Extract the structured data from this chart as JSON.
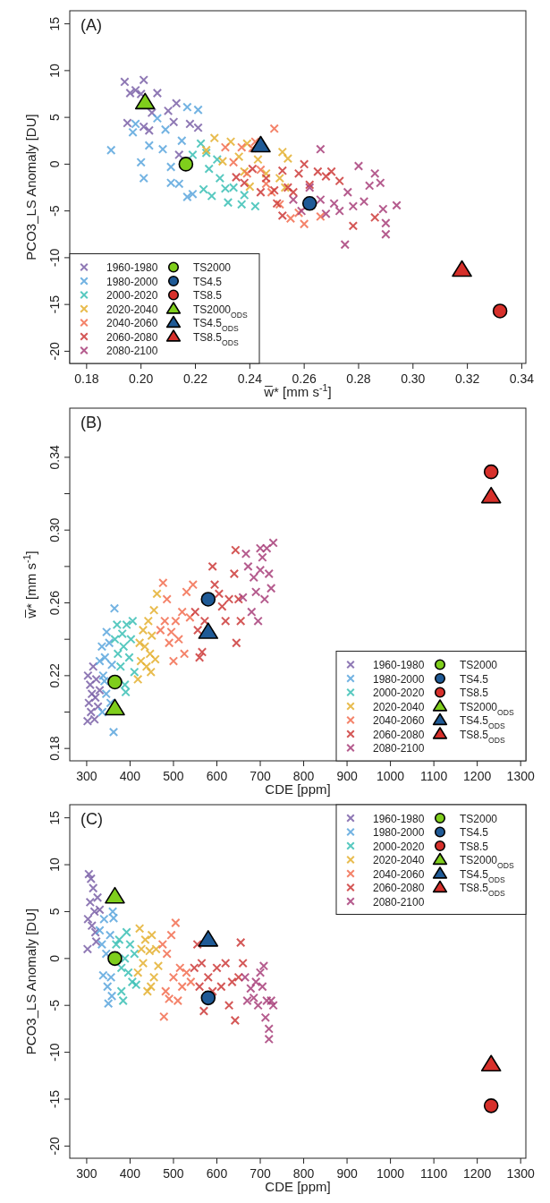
{
  "chart_data": [
    {
      "type": "scatter",
      "xlabel": "w̅* [mm s$^{-1}$]",
      "ylabel": "PCO3_LS Anomaly [DU]",
      "annotations": [
        "(A)"
      ],
      "xlim": [
        0.1738,
        0.3415
      ],
      "xticks": [
        0.18,
        {
          "value": 0.2,
          "label": "0.20"
        },
        0.22,
        0.24,
        0.26,
        0.28,
        {
          "value": 0.3,
          "label": "0.30"
        },
        0.32,
        0.34
      ],
      "ylim": [
        -21.3,
        16.4
      ],
      "yticks": [
        -20,
        -15,
        -10,
        -5,
        0,
        5,
        10,
        15
      ],
      "legend": "bottom left",
      "grid": false,
      "series": [
        {
          "name": "1960-1980",
          "color": "#7b62a8",
          "marker": "cross",
          "x": [
            0.194,
            0.196,
            0.198,
            0.201,
            0.2,
            0.204,
            0.206,
            0.201,
            0.195,
            0.203,
            0.21,
            0.213,
            0.212,
            0.218,
            0.221,
            0.214
          ],
          "values": [
            8.8,
            7.6,
            7.9,
            9.0,
            7.5,
            5.5,
            7.6,
            4.0,
            4.4,
            3.6,
            5.7,
            6.5,
            4.5,
            4.3,
            3.9,
            1.0
          ]
        },
        {
          "name": "1980-2000",
          "color": "#5aa6dd",
          "marker": "cross",
          "x": [
            0.189,
            0.198,
            0.197,
            0.2,
            0.201,
            0.203,
            0.206,
            0.209,
            0.211,
            0.211,
            0.214,
            0.217,
            0.221,
            0.219,
            0.217,
            0.208,
            0.215
          ],
          "values": [
            1.5,
            4.3,
            3.4,
            0.2,
            -1.5,
            2.0,
            4.9,
            3.7,
            -0.3,
            -2.0,
            -2.1,
            6.1,
            5.8,
            -3.2,
            -3.5,
            1.6,
            2.5
          ]
        },
        {
          "name": "2000-2020",
          "color": "#3bbfb5",
          "marker": "cross",
          "x": [
            0.219,
            0.222,
            0.225,
            0.223,
            0.226,
            0.229,
            0.231,
            0.232,
            0.234,
            0.237,
            0.238,
            0.242,
            0.228,
            0.224
          ],
          "values": [
            1.0,
            2.2,
            -0.5,
            -2.7,
            -3.4,
            -1.5,
            -2.6,
            -4.1,
            -2.5,
            -4.3,
            -3.3,
            -4.5,
            0.5,
            1.2
          ]
        },
        {
          "name": "2020-2040",
          "color": "#e4b030",
          "marker": "cross",
          "x": [
            0.224,
            0.227,
            0.23,
            0.233,
            0.236,
            0.238,
            0.24,
            0.243,
            0.246,
            0.251,
            0.252,
            0.254,
            0.253,
            0.239
          ],
          "values": [
            1.5,
            2.8,
            0.3,
            2.4,
            0.8,
            -0.8,
            -2.4,
            0.5,
            -1.0,
            -1.5,
            1.3,
            0.6,
            -2.5,
            2.2
          ]
        },
        {
          "name": "2040-2060",
          "color": "#f26d50",
          "marker": "cross",
          "x": [
            0.231,
            0.234,
            0.237,
            0.241,
            0.239,
            0.244,
            0.246,
            0.249,
            0.248,
            0.251,
            0.255,
            0.258,
            0.266,
            0.26,
            0.242
          ],
          "values": [
            1.8,
            0.2,
            1.8,
            1.7,
            -1.0,
            -0.6,
            -2.1,
            3.8,
            -3.0,
            -4.3,
            -5.8,
            -5.2,
            -5.6,
            -6.4,
            2.4
          ]
        },
        {
          "name": "2060-2080",
          "color": "#cc3a38",
          "marker": "cross",
          "x": [
            0.235,
            0.238,
            0.241,
            0.244,
            0.246,
            0.249,
            0.25,
            0.252,
            0.254,
            0.256,
            0.258,
            0.26,
            0.262,
            0.265,
            0.268,
            0.27,
            0.273,
            0.252,
            0.278,
            0.286
          ],
          "values": [
            -1.4,
            -2.0,
            -0.5,
            -3.0,
            -1.5,
            -2.8,
            -4.2,
            -0.7,
            -2.5,
            -3.0,
            -1.0,
            0.0,
            -2.2,
            -0.8,
            -1.3,
            -0.8,
            -1.8,
            -5.5,
            -6.6,
            -5.7
          ]
        },
        {
          "name": "2080-2100",
          "color": "#a8407a",
          "marker": "cross",
          "x": [
            0.256,
            0.259,
            0.262,
            0.266,
            0.268,
            0.271,
            0.273,
            0.275,
            0.276,
            0.278,
            0.28,
            0.282,
            0.284,
            0.286,
            0.288,
            0.289,
            0.29,
            0.29,
            0.294,
            0.266
          ],
          "values": [
            -3.8,
            -5.0,
            -2.5,
            -3.8,
            -5.3,
            -4.2,
            -5.0,
            -8.6,
            -3.0,
            -4.5,
            -0.2,
            -4.0,
            -2.3,
            -1.0,
            -2.0,
            -4.8,
            -7.5,
            -6.3,
            -4.4,
            1.6
          ]
        },
        {
          "name": "TS2000",
          "color": "#7fce1c",
          "marker": "circle",
          "x": [
            0.2165
          ],
          "values": [
            0
          ]
        },
        {
          "name": "TS4.5",
          "color": "#1f5a96",
          "marker": "circle",
          "x": [
            0.262
          ],
          "values": [
            -4.2
          ]
        },
        {
          "name": "TS8.5",
          "color": "#d7302b",
          "marker": "circle",
          "x": [
            0.332
          ],
          "values": [
            -15.7
          ]
        },
        {
          "name": "TS2000$_{ODS}$",
          "color": "#7fce1c",
          "marker": "triangle",
          "x": [
            0.2015
          ],
          "values": [
            6.6
          ]
        },
        {
          "name": "TS4.5$_{ODS}$",
          "color": "#1f5a96",
          "marker": "triangle",
          "x": [
            0.244
          ],
          "values": [
            2.0
          ]
        },
        {
          "name": "TS8.5$_{ODS}$",
          "color": "#d7302b",
          "marker": "triangle",
          "x": [
            0.318
          ],
          "values": [
            -11.3
          ]
        }
      ]
    },
    {
      "type": "scatter",
      "xlabel": "CDE [ppm]",
      "ylabel": "w̅* [mm s$^{-1}$]",
      "annotations": [
        "(B)"
      ],
      "xlim": [
        261,
        1312
      ],
      "xticks": [
        300,
        400,
        500,
        600,
        700,
        800,
        900,
        1000,
        1100,
        1200,
        1300
      ],
      "ylim": [
        0.1732,
        0.367
      ],
      "yticks": [
        0.18,
        {
          "value": 0.2,
          "label": null
        },
        0.22,
        {
          "value": 0.24,
          "label": null
        },
        0.26,
        {
          "value": 0.28,
          "label": null
        },
        {
          "value": 0.3,
          "label": "0.30"
        },
        {
          "value": 0.32,
          "label": null
        },
        0.34
      ],
      "legend": "bottom right",
      "grid": false,
      "series": [
        {
          "name": "1960-1980",
          "color": "#7b62a8",
          "marker": "cross",
          "x": [
            302,
            305,
            308,
            310,
            312,
            315,
            318,
            320,
            322,
            326,
            330,
            303
          ],
          "values": [
            0.195,
            0.205,
            0.215,
            0.2,
            0.21,
            0.225,
            0.196,
            0.208,
            0.218,
            0.203,
            0.212,
            0.22
          ]
        },
        {
          "name": "1980-2000",
          "color": "#5aa6dd",
          "marker": "cross",
          "x": [
            330,
            335,
            338,
            342,
            346,
            341,
            352,
            355,
            358,
            362,
            364,
            345,
            336
          ],
          "values": [
            0.228,
            0.236,
            0.22,
            0.23,
            0.244,
            0.217,
            0.238,
            0.205,
            0.226,
            0.189,
            0.257,
            0.21,
            0.2
          ]
        },
        {
          "name": "2000-2020",
          "color": "#3bbfb5",
          "marker": "cross",
          "x": [
            365,
            370,
            372,
            378,
            382,
            385,
            390,
            392,
            398,
            402,
            406,
            410,
            388
          ],
          "values": [
            0.24,
            0.248,
            0.232,
            0.225,
            0.243,
            0.236,
            0.211,
            0.248,
            0.23,
            0.24,
            0.25,
            0.222,
            0.215
          ]
        },
        {
          "name": "2020-2040",
          "color": "#e4b030",
          "marker": "cross",
          "x": [
            418,
            422,
            425,
            430,
            434,
            438,
            442,
            446,
            450,
            455,
            458,
            462,
            448
          ],
          "values": [
            0.218,
            0.238,
            0.228,
            0.245,
            0.236,
            0.225,
            0.25,
            0.232,
            0.242,
            0.256,
            0.229,
            0.265,
            0.222
          ]
        },
        {
          "name": "2040-2060",
          "color": "#f26d50",
          "marker": "cross",
          "x": [
            470,
            476,
            480,
            485,
            490,
            495,
            500,
            505,
            512,
            520,
            530,
            538,
            545,
            525
          ],
          "values": [
            0.245,
            0.271,
            0.25,
            0.262,
            0.238,
            0.244,
            0.228,
            0.25,
            0.24,
            0.255,
            0.266,
            0.252,
            0.27,
            0.232
          ]
        },
        {
          "name": "2060-2080",
          "color": "#cc3a38",
          "marker": "cross",
          "x": [
            550,
            556,
            560,
            566,
            572,
            590,
            595,
            605,
            612,
            620,
            628,
            640,
            643,
            645,
            650,
            655
          ],
          "values": [
            0.255,
            0.245,
            0.23,
            0.233,
            0.25,
            0.28,
            0.27,
            0.265,
            0.258,
            0.25,
            0.262,
            0.276,
            0.289,
            0.238,
            0.262,
            0.25
          ]
        },
        {
          "name": "2080-2100",
          "color": "#a8407a",
          "marker": "cross",
          "x": [
            660,
            667,
            672,
            680,
            685,
            690,
            695,
            700,
            705,
            710,
            715,
            720,
            725,
            730,
            700
          ],
          "values": [
            0.263,
            0.287,
            0.28,
            0.255,
            0.274,
            0.266,
            0.25,
            0.278,
            0.285,
            0.262,
            0.29,
            0.276,
            0.268,
            0.293,
            0.29
          ]
        },
        {
          "name": "TS2000",
          "color": "#7fce1c",
          "marker": "circle",
          "x": [
            365
          ],
          "values": [
            0.2165
          ]
        },
        {
          "name": "TS4.5",
          "color": "#1f5a96",
          "marker": "circle",
          "x": [
            580
          ],
          "values": [
            0.262
          ]
        },
        {
          "name": "TS8.5",
          "color": "#d7302b",
          "marker": "circle",
          "x": [
            1232
          ],
          "values": [
            0.332
          ]
        },
        {
          "name": "TS2000$_{ODS}$",
          "color": "#7fce1c",
          "marker": "triangle",
          "x": [
            365
          ],
          "values": [
            0.202
          ]
        },
        {
          "name": "TS4.5$_{ODS}$",
          "color": "#1f5a96",
          "marker": "triangle",
          "x": [
            580
          ],
          "values": [
            0.244
          ]
        },
        {
          "name": "TS8.5$_{ODS}$",
          "color": "#d7302b",
          "marker": "triangle",
          "x": [
            1232
          ],
          "values": [
            0.3185
          ]
        }
      ]
    },
    {
      "type": "scatter",
      "xlabel": "CDE [ppm]",
      "ylabel": "PCO3_LS Anomaly [DU]",
      "annotations": [
        "(C)"
      ],
      "xlim": [
        261,
        1312
      ],
      "xticks": [
        300,
        400,
        500,
        600,
        700,
        800,
        900,
        1000,
        1100,
        1200,
        1300
      ],
      "ylim": [
        -21.3,
        16.4
      ],
      "yticks": [
        -20,
        -15,
        -10,
        -5,
        0,
        5,
        10,
        15
      ],
      "legend": "top right",
      "grid": false,
      "series": [
        {
          "name": "1960-1980",
          "color": "#7b62a8",
          "marker": "cross",
          "x": [
            302,
            303,
            305,
            308,
            310,
            312,
            315,
            318,
            320,
            325,
            330,
            322
          ],
          "values": [
            1.0,
            4.2,
            9.0,
            6.0,
            8.5,
            3.5,
            7.5,
            5.0,
            2.8,
            6.5,
            5.2,
            1.8
          ]
        },
        {
          "name": "1980-2000",
          "color": "#5aa6dd",
          "marker": "cross",
          "x": [
            330,
            335,
            338,
            340,
            345,
            348,
            350,
            354,
            356,
            360,
            362,
            358
          ],
          "values": [
            3.0,
            1.5,
            -1.8,
            4.2,
            0.5,
            -3.0,
            -4.8,
            2.5,
            -2.0,
            5.0,
            4.3,
            -4.0
          ]
        },
        {
          "name": "2000-2020",
          "color": "#3bbfb5",
          "marker": "cross",
          "x": [
            368,
            380,
            375,
            380,
            384,
            388,
            392,
            396,
            400,
            405,
            410,
            414
          ],
          "values": [
            1.5,
            -1.0,
            2.0,
            -3.5,
            -4.5,
            0.0,
            2.8,
            -1.5,
            1.5,
            -2.5,
            0.5,
            -2.8
          ]
        },
        {
          "name": "2020-2040",
          "color": "#e4b030",
          "marker": "cross",
          "x": [
            418,
            422,
            426,
            430,
            435,
            440,
            445,
            450,
            455,
            460,
            465,
            448
          ],
          "values": [
            -1.5,
            3.2,
            1.0,
            -0.5,
            2.0,
            -3.5,
            0.8,
            2.5,
            -2.0,
            1.0,
            -0.8,
            -3.0
          ]
        },
        {
          "name": "2040-2060",
          "color": "#f26d50",
          "marker": "cross",
          "x": [
            475,
            478,
            482,
            485,
            490,
            495,
            500,
            505,
            510,
            515,
            520,
            530,
            540
          ],
          "values": [
            1.5,
            -6.2,
            -3.5,
            0.5,
            -4.3,
            2.5,
            -2.0,
            3.8,
            -4.5,
            -1.0,
            -3.0,
            -1.5,
            -2.5
          ]
        },
        {
          "name": "2060-2080",
          "color": "#cc3a38",
          "marker": "cross",
          "x": [
            548,
            555,
            560,
            565,
            570,
            580,
            590,
            600,
            610,
            620,
            628,
            635,
            642,
            650,
            655,
            660
          ],
          "values": [
            -1.0,
            1.5,
            -3.0,
            -0.5,
            -5.6,
            -2.0,
            -3.5,
            -1.0,
            -3.0,
            -0.5,
            -5.0,
            -2.5,
            -6.6,
            -2.0,
            1.7,
            -0.5
          ]
        },
        {
          "name": "2080-2100",
          "color": "#a8407a",
          "marker": "cross",
          "x": [
            665,
            670,
            678,
            685,
            690,
            695,
            700,
            705,
            708,
            712,
            715,
            720,
            720,
            725,
            730
          ],
          "values": [
            -2.0,
            -4.5,
            -3.2,
            -4.2,
            -2.5,
            -5.0,
            -1.5,
            -3.0,
            -0.8,
            -6.3,
            -4.5,
            -8.6,
            -7.5,
            -4.5,
            -5.0
          ]
        },
        {
          "name": "TS2000",
          "color": "#7fce1c",
          "marker": "circle",
          "x": [
            365
          ],
          "values": [
            0
          ]
        },
        {
          "name": "TS4.5",
          "color": "#1f5a96",
          "marker": "circle",
          "x": [
            580
          ],
          "values": [
            -4.2
          ]
        },
        {
          "name": "TS8.5",
          "color": "#d7302b",
          "marker": "circle",
          "x": [
            1232
          ],
          "values": [
            -15.7
          ]
        },
        {
          "name": "TS2000$_{ODS}$",
          "color": "#7fce1c",
          "marker": "triangle",
          "x": [
            365
          ],
          "values": [
            6.6
          ]
        },
        {
          "name": "TS4.5$_{ODS}$",
          "color": "#1f5a96",
          "marker": "triangle",
          "x": [
            580
          ],
          "values": [
            2.0
          ]
        },
        {
          "name": "TS8.5$_{ODS}$",
          "color": "#d7302b",
          "marker": "triangle",
          "x": [
            1232
          ],
          "values": [
            -11.3
          ]
        }
      ]
    }
  ]
}
